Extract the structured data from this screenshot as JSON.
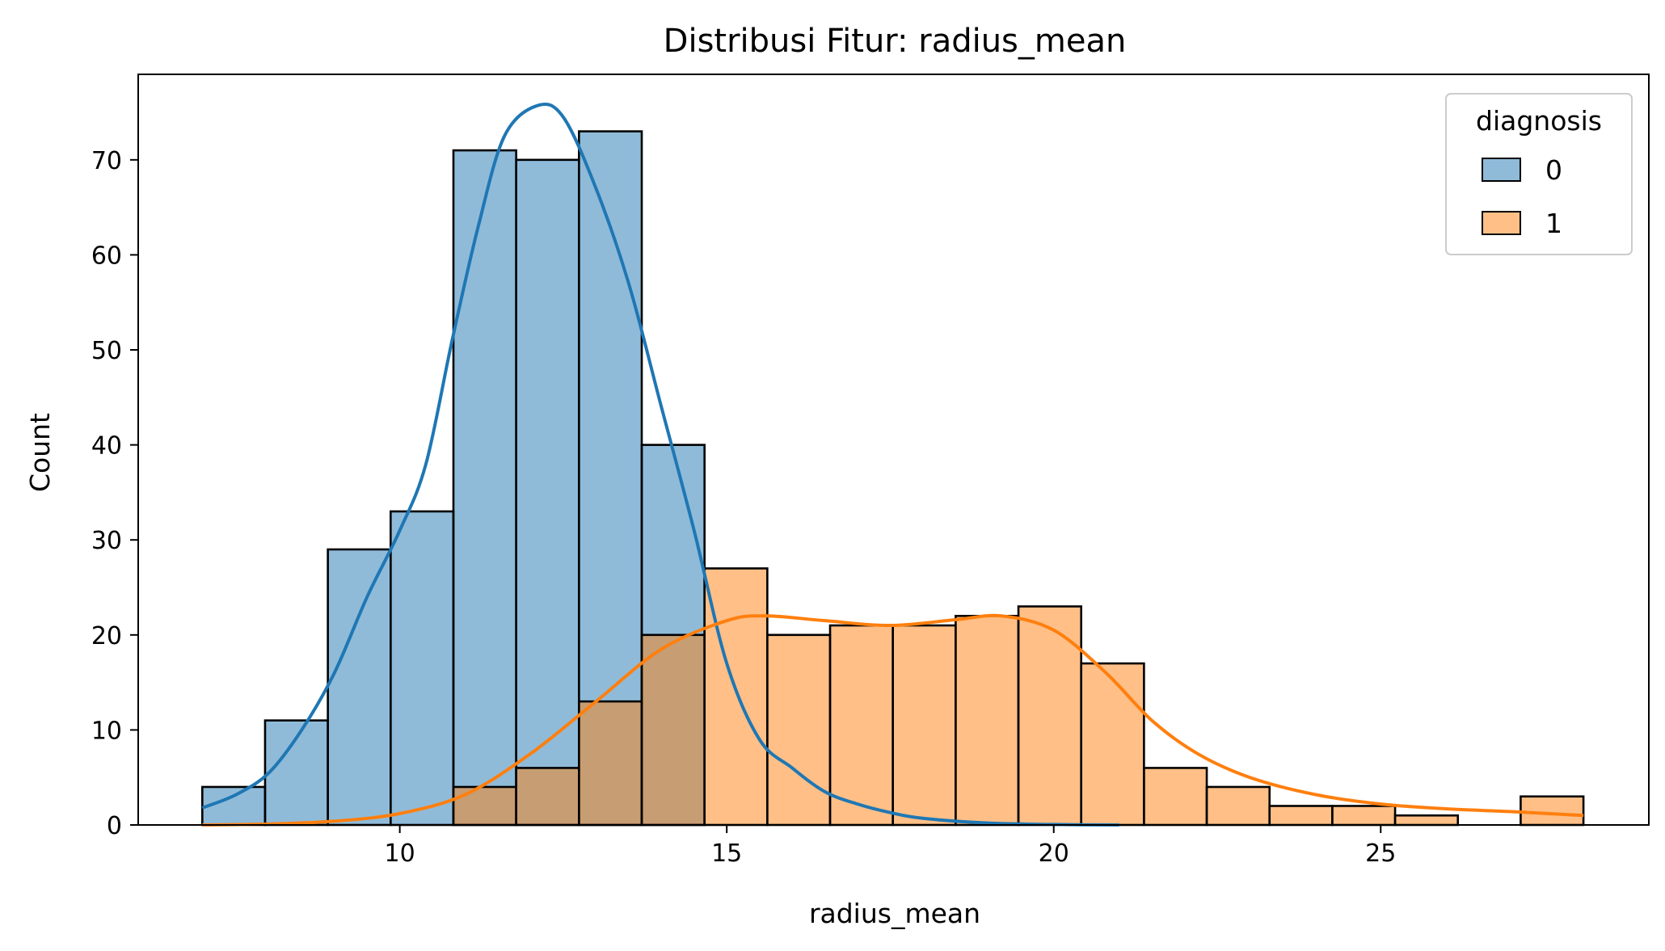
{
  "chart_data": {
    "type": "bar",
    "title": "Distribusi Fitur: radius_mean",
    "xlabel": "radius_mean",
    "ylabel": "Count",
    "xlim": [
      6.0,
      29.1
    ],
    "ylim": [
      0,
      79
    ],
    "xticks": [
      10,
      15,
      20,
      25
    ],
    "yticks": [
      0,
      10,
      20,
      30,
      40,
      50,
      60,
      70
    ],
    "bin_edges": [
      6.98,
      7.94,
      8.9,
      9.86,
      10.82,
      11.78,
      12.74,
      13.7,
      14.66,
      15.62,
      16.58,
      17.54,
      18.5,
      19.46,
      20.42,
      21.38,
      22.34,
      23.3,
      24.26,
      25.22,
      26.18,
      27.14,
      28.1
    ],
    "legend": {
      "title": "diagnosis",
      "position": "top-right"
    },
    "series": [
      {
        "name": "0",
        "color": "#1f77b4",
        "values": [
          4,
          11,
          29,
          33,
          71,
          70,
          73,
          40,
          0,
          0,
          0,
          0,
          0,
          0,
          0,
          0,
          0,
          0,
          0,
          0,
          0,
          0
        ],
        "kde": [
          [
            6.98,
            1.8
          ],
          [
            7.5,
            3.2
          ],
          [
            8.0,
            5.5
          ],
          [
            8.5,
            10
          ],
          [
            9.0,
            16
          ],
          [
            9.5,
            24
          ],
          [
            10.0,
            31
          ],
          [
            10.4,
            38
          ],
          [
            10.8,
            51
          ],
          [
            11.2,
            63
          ],
          [
            11.6,
            72.5
          ],
          [
            12.1,
            75.7
          ],
          [
            12.5,
            74.5
          ],
          [
            13.0,
            67
          ],
          [
            13.5,
            57
          ],
          [
            14.0,
            44
          ],
          [
            14.5,
            31
          ],
          [
            15.0,
            17
          ],
          [
            15.5,
            9
          ],
          [
            16.0,
            6
          ],
          [
            16.5,
            3.5
          ],
          [
            17.0,
            2.2
          ],
          [
            17.5,
            1.3
          ],
          [
            18.0,
            0.7
          ],
          [
            19.0,
            0.2
          ],
          [
            20.0,
            0.05
          ],
          [
            21.0,
            0
          ]
        ]
      },
      {
        "name": "1",
        "color": "#ff7f0e",
        "values": [
          0,
          0,
          0,
          0,
          4,
          6,
          13,
          20,
          27,
          20,
          21,
          21,
          22,
          23,
          17,
          6,
          4,
          2,
          2,
          1,
          0,
          3
        ],
        "kde": [
          [
            6.98,
            0
          ],
          [
            8.0,
            0.1
          ],
          [
            9.0,
            0.4
          ],
          [
            10.0,
            1.2
          ],
          [
            11.0,
            3.2
          ],
          [
            12.0,
            7.5
          ],
          [
            13.0,
            13
          ],
          [
            14.0,
            18.5
          ],
          [
            15.0,
            21.5
          ],
          [
            15.6,
            22
          ],
          [
            16.5,
            21.5
          ],
          [
            17.5,
            21
          ],
          [
            18.5,
            21.6
          ],
          [
            19.2,
            22
          ],
          [
            20.0,
            20.5
          ],
          [
            20.8,
            16
          ],
          [
            21.5,
            11
          ],
          [
            22.2,
            7.5
          ],
          [
            23.0,
            5
          ],
          [
            24.0,
            3.2
          ],
          [
            25.0,
            2.2
          ],
          [
            26.0,
            1.7
          ],
          [
            27.0,
            1.4
          ],
          [
            28.1,
            1
          ]
        ]
      }
    ]
  }
}
